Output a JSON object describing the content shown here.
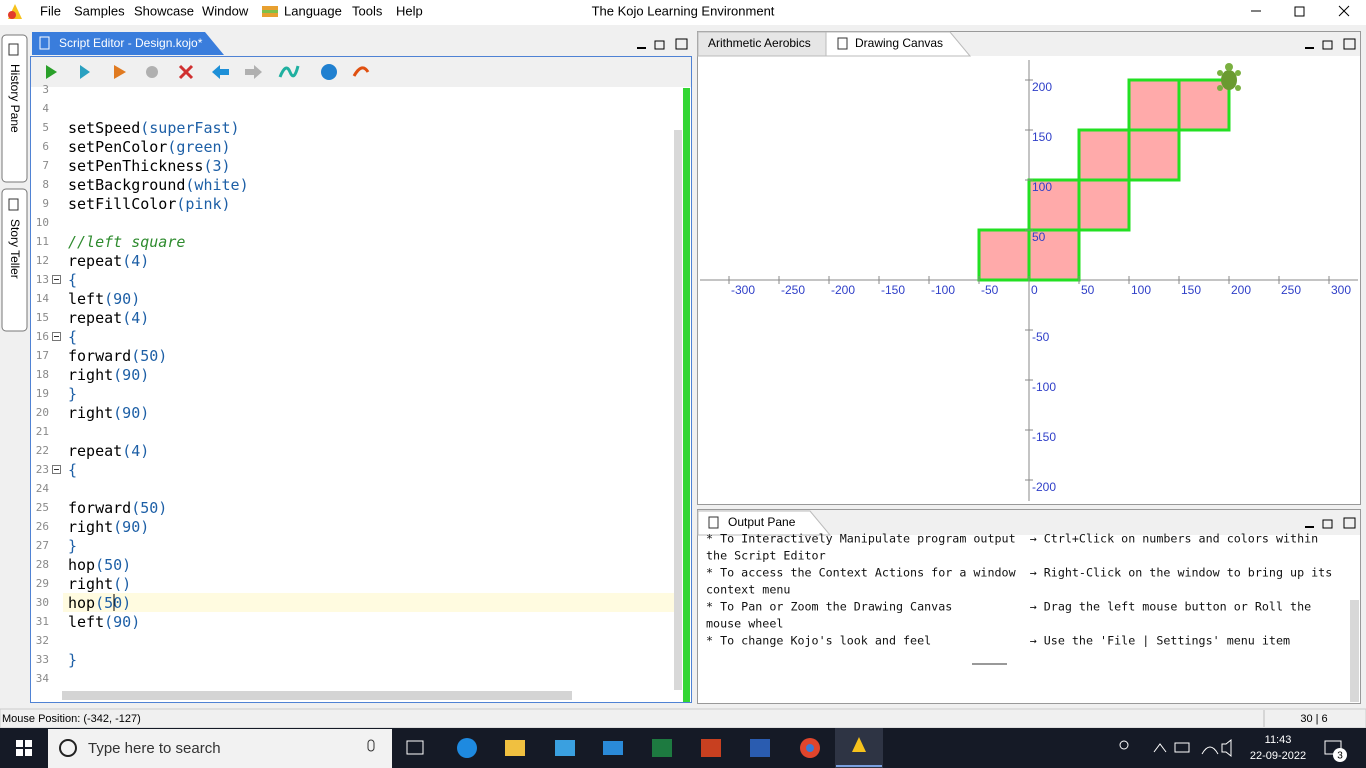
{
  "menu": {
    "items": [
      "File",
      "Samples",
      "Showcase",
      "Window",
      "Language",
      "Tools",
      "Help"
    ],
    "app_title": "The Kojo Learning Environment"
  },
  "side_tabs": [
    "History Pane",
    "Story Teller"
  ],
  "editor": {
    "tab": "Script Editor - Design.kojo*",
    "lines": [
      {
        "num": 3
      },
      {
        "num": 4
      },
      {
        "num": 5,
        "code": "setSpeed(superFast)"
      },
      {
        "num": 6,
        "code": "setPenColor(green)"
      },
      {
        "num": 7,
        "code": "setPenThickness(3)"
      },
      {
        "num": 8,
        "code": "setBackground(white)"
      },
      {
        "num": 9,
        "code": "setFillColor(pink)"
      },
      {
        "num": 10
      },
      {
        "num": 11,
        "code": "//left square"
      },
      {
        "num": 12,
        "code": "repeat(4)"
      },
      {
        "num": 13,
        "code": "{",
        "fold": true
      },
      {
        "num": 14,
        "code": "left(90)"
      },
      {
        "num": 15,
        "code": "repeat(4)"
      },
      {
        "num": 16,
        "code": "{",
        "fold": true
      },
      {
        "num": 17,
        "code": "forward(50)"
      },
      {
        "num": 18,
        "code": "right(90)"
      },
      {
        "num": 19,
        "code": "}"
      },
      {
        "num": 20,
        "code": "right(90)"
      },
      {
        "num": 21
      },
      {
        "num": 22,
        "code": "repeat(4)"
      },
      {
        "num": 23,
        "code": "{",
        "fold": true
      },
      {
        "num": 24
      },
      {
        "num": 25,
        "code": "forward(50)"
      },
      {
        "num": 26,
        "code": "right(90)"
      },
      {
        "num": 27,
        "code": "}"
      },
      {
        "num": 28,
        "code": "hop(50)"
      },
      {
        "num": 29,
        "code": "right()"
      },
      {
        "num": 30,
        "code": "hop(50)",
        "current": true
      },
      {
        "num": 31,
        "code": "left(90)"
      },
      {
        "num": 32
      },
      {
        "num": 33,
        "code": "}"
      },
      {
        "num": 34
      }
    ]
  },
  "canvas": {
    "tabs": [
      "Arithmetic Aerobics",
      "Drawing Canvas"
    ],
    "xticks": [
      -300,
      -250,
      -200,
      -150,
      -100,
      -50,
      0,
      50,
      100,
      150,
      200,
      250,
      300
    ],
    "yticks": [
      200,
      150,
      100,
      50,
      -50,
      -100,
      -150,
      -200
    ]
  },
  "output": {
    "tab": "Output Pane",
    "lines": [
      "* To Interactively Manipulate program output  → Ctrl+Click on numbers and colors within",
      "the Script Editor",
      "* To access the Context Actions for a window  → Right-Click on the window to bring up its",
      "context menu",
      "* To Pan or Zoom the Drawing Canvas           → Drag the left mouse button or Roll the",
      "mouse wheel",
      "* To change Kojo's look and feel              → Use the 'File | Settings' menu item"
    ]
  },
  "status": {
    "mouse": "Mouse Position: (-342, -127)",
    "caret": "30 | 6"
  },
  "taskbar": {
    "search": "Type here to search",
    "time": "11:43",
    "date": "22-09-2022",
    "badge": "3"
  }
}
